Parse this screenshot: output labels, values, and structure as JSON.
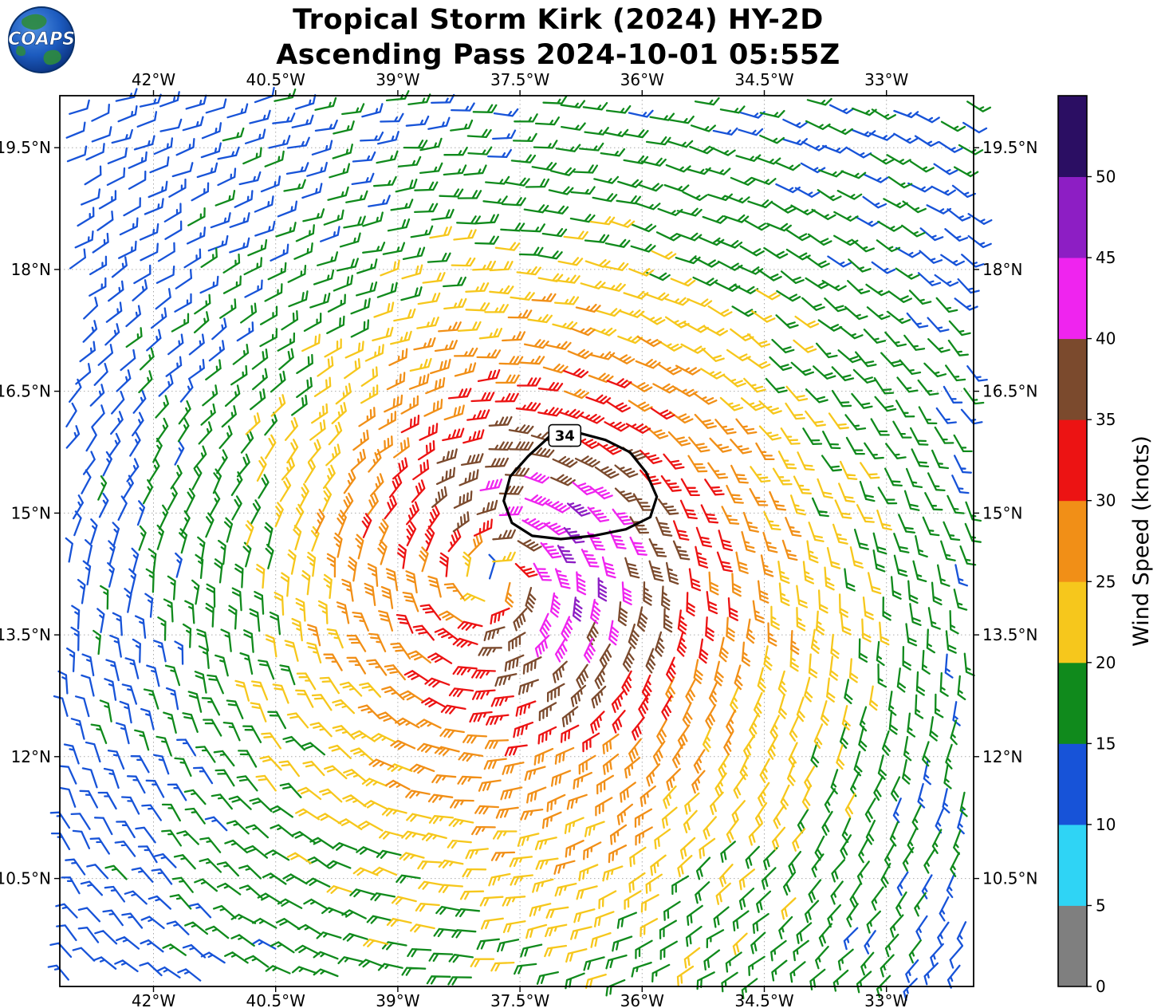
{
  "header": {
    "logo_text": "COAPS"
  },
  "chart_data": {
    "type": "wind_barbs",
    "title": "Tropical Storm Kirk (2024) HY-2D",
    "subtitle": "Ascending Pass 2024-10-01 05:55Z",
    "x_axis": {
      "tick_lons": [
        -42,
        -40.5,
        -39,
        -37.5,
        -36,
        -34.5,
        -33
      ],
      "tick_labels": [
        "42°W",
        "40.5°W",
        "39°W",
        "37.5°W",
        "36°W",
        "34.5°W",
        "33°W"
      ],
      "lim": [
        -43.15,
        -31.93
      ]
    },
    "y_axis": {
      "tick_lats": [
        19.5,
        18,
        16.5,
        15,
        13.5,
        12,
        10.5
      ],
      "tick_labels": [
        "19.5°N",
        "18°N",
        "16.5°N",
        "15°N",
        "13.5°N",
        "12°N",
        "10.5°N"
      ],
      "lim": [
        9.17,
        20.14
      ]
    },
    "grid": {
      "show": true,
      "style": "dotted",
      "color": "#aaaaaa"
    },
    "colorbar": {
      "label": "Wind Speed (knots)",
      "tick_values": [
        0,
        5,
        10,
        15,
        20,
        25,
        30,
        35,
        40,
        45,
        50
      ],
      "tick_labels": [
        "0",
        "5",
        "10",
        "15",
        "20",
        "25",
        "30",
        "35",
        "40",
        "45",
        "50"
      ],
      "bin_edges": [
        0,
        5,
        10,
        15,
        20,
        25,
        30,
        35,
        40,
        45,
        50,
        55
      ],
      "bin_colors": [
        "#7f7f7f",
        "#2fd4f5",
        "#1753d8",
        "#108a1c",
        "#f6c71c",
        "#f18f17",
        "#ec1313",
        "#7b4a2d",
        "#ef24ef",
        "#8d1ec4",
        "#2b0e63"
      ]
    },
    "contour": {
      "label": "34",
      "color": "#000000",
      "points": [
        [
          -37.15,
          15.93
        ],
        [
          -36.75,
          15.98
        ],
        [
          -36.45,
          15.9
        ],
        [
          -36.15,
          15.75
        ],
        [
          -35.95,
          15.5
        ],
        [
          -35.82,
          15.2
        ],
        [
          -35.9,
          14.95
        ],
        [
          -36.2,
          14.8
        ],
        [
          -36.6,
          14.72
        ],
        [
          -37.0,
          14.68
        ],
        [
          -37.35,
          14.72
        ],
        [
          -37.6,
          14.88
        ],
        [
          -37.7,
          15.15
        ],
        [
          -37.62,
          15.45
        ],
        [
          -37.4,
          15.7
        ]
      ],
      "label_pos": [
        -36.95,
        15.95
      ]
    },
    "storm_center": {
      "lon": -37.8,
      "lat": 14.2
    },
    "wind_field_model": {
      "center": [
        -37.8,
        14.2
      ],
      "rmax_deg": 1.0,
      "vpeak_kt": 16,
      "inner_asym": 0.5,
      "inner_asym_phase_deg": 60,
      "outer_v_kt": 24,
      "outer_scale_deg": 9,
      "outer_asym": 0.35,
      "outer_asym_phase_deg": -70,
      "bg_u_base": -3,
      "bg_u_lat_slope": 0.55,
      "bg_v": 0.5
    },
    "barb_grid": {
      "spacing_deg": 0.27,
      "tilt_deg": -9,
      "pos_jitter_deg": 0.035,
      "dir_jitter_deg": 7,
      "spd_jitter_kt": 2,
      "seed": 42
    }
  }
}
